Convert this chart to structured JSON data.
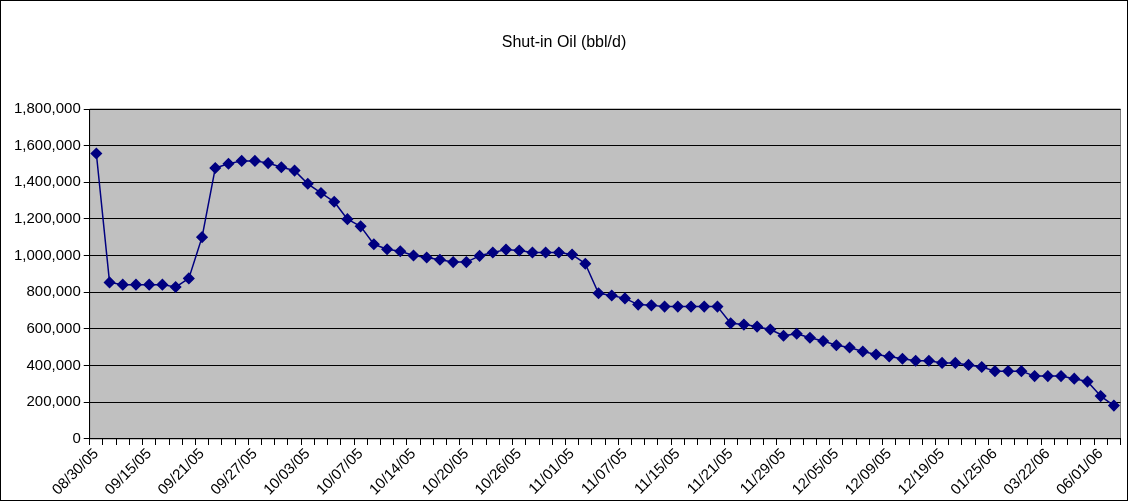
{
  "chart_data": {
    "type": "line",
    "title": "Shut-in Oil (bbl/d)",
    "categories": [
      "08/30/05",
      null,
      null,
      null,
      "09/15/05",
      null,
      null,
      null,
      "09/21/05",
      null,
      null,
      null,
      "09/27/05",
      null,
      null,
      null,
      "10/03/05",
      null,
      null,
      null,
      "10/07/05",
      null,
      null,
      null,
      "10/14/05",
      null,
      null,
      null,
      "10/20/05",
      null,
      null,
      null,
      "10/26/05",
      null,
      null,
      null,
      "11/01/05",
      null,
      null,
      null,
      "11/07/05",
      null,
      null,
      null,
      "11/15/05",
      null,
      null,
      null,
      "11/21/05",
      null,
      null,
      null,
      "11/29/05",
      null,
      null,
      null,
      "12/05/05",
      null,
      null,
      null,
      "12/09/05",
      null,
      null,
      null,
      "12/19/05",
      null,
      null,
      null,
      "01/25/06",
      null,
      null,
      null,
      "03/22/06",
      null,
      null,
      null,
      "06/01/06",
      null
    ],
    "series": [
      {
        "color": "#000080",
        "values": [
          1557000,
          854000,
          842000,
          842000,
          842000,
          842000,
          829000,
          876000,
          1101000,
          1478000,
          1501000,
          1517000,
          1517000,
          1505000,
          1482000,
          1464000,
          1392000,
          1342000,
          1294000,
          1199000,
          1160000,
          1062000,
          1035000,
          1024000,
          1001000,
          990000,
          978000,
          965000,
          965000,
          999000,
          1017000,
          1033000,
          1028000,
          1017000,
          1017000,
          1017000,
          1006000,
          956000,
          795000,
          783000,
          767000,
          733000,
          729000,
          722000,
          722000,
          722000,
          722000,
          722000,
          631000,
          624000,
          613000,
          597000,
          563000,
          574000,
          552000,
          534000,
          511000,
          499000,
          477000,
          461000,
          450000,
          438000,
          427000,
          427000,
          415000,
          415000,
          404000,
          393000,
          370000,
          370000,
          370000,
          343000,
          343000,
          343000,
          329000,
          313000,
          234000,
          182000
        ]
      }
    ],
    "ylim": [
      0,
      1800000
    ],
    "yticks": [
      0,
      {
        "value": 200000,
        "label": "200,000"
      },
      {
        "value": 400000,
        "label": "400,000"
      },
      {
        "value": 600000,
        "label": "600,000"
      },
      {
        "value": 800000,
        "label": "800,000"
      },
      {
        "value": 1000000,
        "label": "1,000,000"
      },
      {
        "value": 1200000,
        "label": "1,200,000"
      },
      {
        "value": 1400000,
        "label": "1,400,000"
      },
      {
        "value": 1600000,
        "label": "1,600,000"
      },
      {
        "value": 1800000,
        "label": "1,800,000"
      }
    ],
    "grid": "y",
    "legend": false,
    "marker": "diamond",
    "line_style": "solid"
  }
}
